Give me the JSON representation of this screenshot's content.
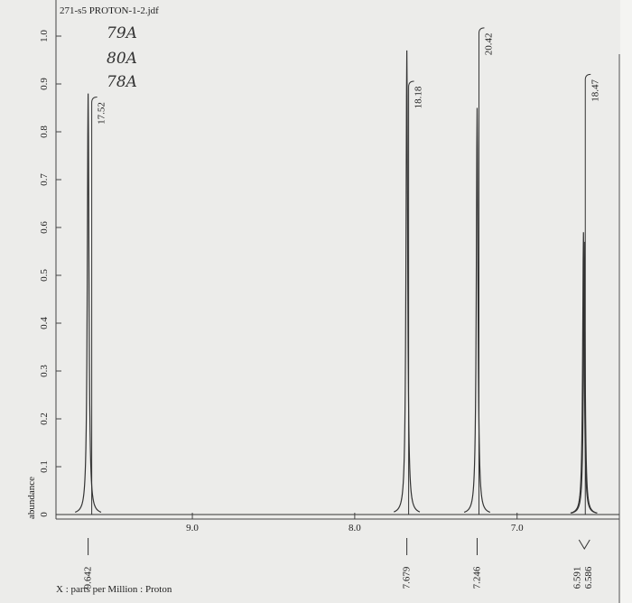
{
  "chart_data": {
    "type": "spectrum",
    "title": "271-s5 PROTON-1-2.jdf",
    "annotations": [
      "79A",
      "80A",
      "78A"
    ],
    "x_label": "X : parts per Million : Proton",
    "y_label": "abundance",
    "xlim": [
      9.84,
      6.37
    ],
    "ylim": [
      0,
      1.0
    ],
    "xticks": [
      {
        "value": 9,
        "label": "9.0"
      },
      {
        "value": 8,
        "label": "8.0"
      },
      {
        "value": 7,
        "label": "7.0"
      }
    ],
    "yticks": [
      0,
      0.1,
      0.2,
      0.3,
      0.4,
      0.5,
      0.6,
      0.7,
      0.8,
      0.9,
      {
        "value": 1,
        "label": "1.0"
      }
    ],
    "peaks": {
      "x": [
        9.642,
        7.679,
        7.246,
        6.591,
        6.586
      ],
      "values": [
        0.88,
        0.97,
        0.85,
        0.59,
        0.57
      ]
    },
    "integrals": [
      17.52,
      18.18,
      20.42,
      18.47
    ],
    "color": "#333333"
  }
}
